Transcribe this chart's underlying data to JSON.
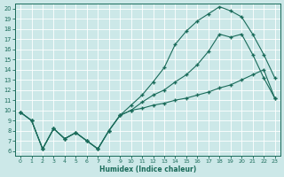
{
  "xlabel": "Humidex (Indice chaleur)",
  "xlim": [
    -0.5,
    23.5
  ],
  "ylim": [
    5.5,
    20.5
  ],
  "xticks": [
    0,
    1,
    2,
    3,
    4,
    5,
    6,
    7,
    8,
    9,
    10,
    11,
    12,
    13,
    14,
    15,
    16,
    17,
    18,
    19,
    20,
    21,
    22,
    23
  ],
  "yticks": [
    6,
    7,
    8,
    9,
    10,
    11,
    12,
    13,
    14,
    15,
    16,
    17,
    18,
    19,
    20
  ],
  "bg_color": "#cce8e8",
  "line_color": "#1a6b5a",
  "grid_color": "#ffffff",
  "line1_x": [
    0,
    1,
    2,
    3,
    4,
    5,
    6,
    7,
    8,
    9,
    10,
    11,
    12,
    13,
    14,
    15,
    16,
    17,
    18,
    19,
    20,
    21,
    22,
    23
  ],
  "line1_y": [
    9.8,
    9.0,
    6.2,
    8.2,
    7.2,
    7.8,
    7.0,
    6.2,
    8.0,
    9.5,
    10.5,
    11.5,
    12.8,
    14.2,
    16.5,
    17.8,
    18.8,
    19.5,
    20.2,
    19.8,
    19.2,
    17.5,
    15.5,
    13.2
  ],
  "line2_x": [
    0,
    1,
    2,
    3,
    4,
    5,
    6,
    7,
    8,
    9,
    10,
    11,
    12,
    13,
    14,
    15,
    16,
    17,
    18,
    19,
    20,
    21,
    22,
    23
  ],
  "line2_y": [
    9.8,
    9.0,
    6.2,
    8.2,
    7.2,
    7.8,
    7.0,
    6.2,
    8.0,
    9.5,
    10.0,
    10.8,
    11.5,
    12.0,
    12.8,
    13.5,
    14.5,
    15.8,
    17.5,
    17.2,
    17.5,
    15.5,
    13.2,
    11.2
  ],
  "line3_x": [
    0,
    1,
    2,
    3,
    4,
    5,
    6,
    7,
    8,
    9,
    10,
    11,
    12,
    13,
    14,
    15,
    16,
    17,
    18,
    19,
    20,
    21,
    22,
    23
  ],
  "line3_y": [
    9.8,
    9.0,
    6.2,
    8.2,
    7.2,
    7.8,
    7.0,
    6.2,
    8.0,
    9.5,
    10.0,
    10.2,
    10.5,
    10.7,
    11.0,
    11.2,
    11.5,
    11.8,
    12.2,
    12.5,
    13.0,
    13.5,
    14.0,
    11.2
  ]
}
